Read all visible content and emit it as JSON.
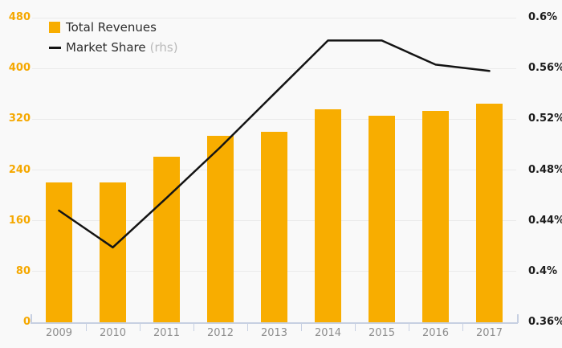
{
  "chart_data": {
    "type": "bar",
    "title": "",
    "categories": [
      "2009",
      "2010",
      "2011",
      "2012",
      "2013",
      "2014",
      "2015",
      "2016",
      "2017"
    ],
    "series": [
      {
        "name": "Total Revenues",
        "type": "bar",
        "axis": "left",
        "color": "#f8ad00",
        "values": [
          220,
          220,
          261,
          294,
          300,
          336,
          326,
          333,
          345
        ]
      },
      {
        "name": "Market Share",
        "type": "line",
        "axis": "right",
        "color": "#141414",
        "values": [
          0.448,
          0.419,
          0.458,
          0.498,
          0.54,
          0.582,
          0.582,
          0.563,
          0.558
        ]
      }
    ],
    "left_axis": {
      "min": 0,
      "max": 480,
      "tick_step": 80,
      "ticks": [
        "0",
        "80",
        "160",
        "240",
        "320",
        "400",
        "480"
      ],
      "label_color": "#f5a800"
    },
    "right_axis": {
      "min": 0.36,
      "max": 0.6,
      "tick_step": 0.04,
      "unit": "%",
      "ticks": [
        "0.36%",
        "0.4%",
        "0.44%",
        "0.48%",
        "0.52%",
        "0.56%",
        "0.6%"
      ],
      "label_color": "#1c1c1c"
    },
    "grid": true,
    "legend_position": "top-left"
  },
  "legend": {
    "items": [
      {
        "label": "Total Revenues",
        "suffix": "",
        "swatch": "orange-square"
      },
      {
        "label": "Market Share",
        "suffix": "(rhs)",
        "swatch": "black-line"
      }
    ]
  },
  "colors": {
    "background": "#f9f9f9",
    "bar": "#f8ad00",
    "line": "#141414",
    "gridline": "#eaeaea",
    "axis": "#c7d0e2",
    "x_label": "#8e8e8e",
    "legend_suffix": "#b9b9b9"
  }
}
